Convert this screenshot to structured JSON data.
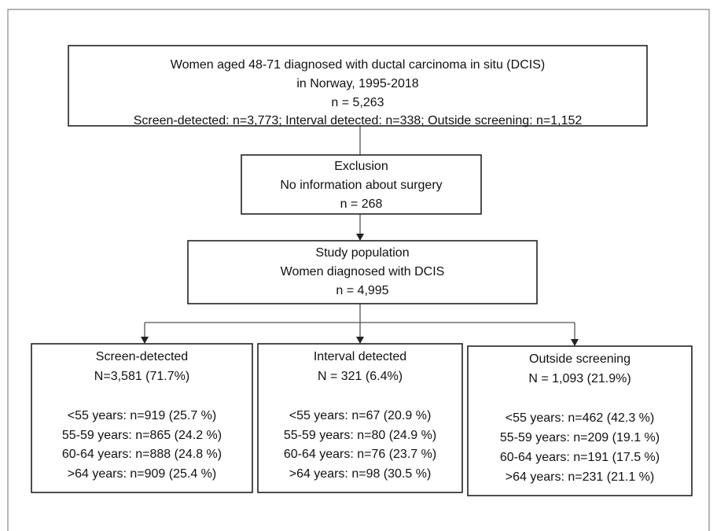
{
  "nodes": [
    {
      "lines": [
        "Women aged 48-71 diagnosed with ductal carcinoma in situ (DCIS)",
        "in Norway, 1995-2018",
        "n = 5,263",
        "Screen-detected: n=3,773; Interval detected: n=338; Outside screening: n=1,152"
      ]
    },
    {
      "lines": [
        "Exclusion",
        "No information about surgery",
        "n = 268"
      ]
    },
    {
      "lines": [
        "Study population",
        "Women diagnosed with DCIS",
        "n = 4,995"
      ]
    },
    {
      "lines": [
        "Screen-detected",
        "N=3,581 (71.7%)",
        "<55 years: n=919 (25.7 %)",
        "55-59 years: n=865 (24.2 %)",
        "60-64 years: n=888 (24.8 %)",
        ">64 years: n=909 (25.4 %)"
      ]
    },
    {
      "lines": [
        "Interval detected",
        "N = 321 (6.4%)",
        "<55 years: n=67 (20.9 %)",
        "55-59 years: n=80 (24.9 %)",
        "60-64 years: n=76 (23.7 %)",
        ">64 years: n=98 (30.5 %)"
      ]
    },
    {
      "lines": [
        "Outside screening",
        "N = 1,093 (21.9%)",
        "<55 years: n=462 (42.3 %)",
        "55-59 years: n=209 (19.1 %)",
        "60-64 years: n=191 (17.5 %)",
        ">64 years: n=231 (21.1 %)"
      ]
    }
  ]
}
